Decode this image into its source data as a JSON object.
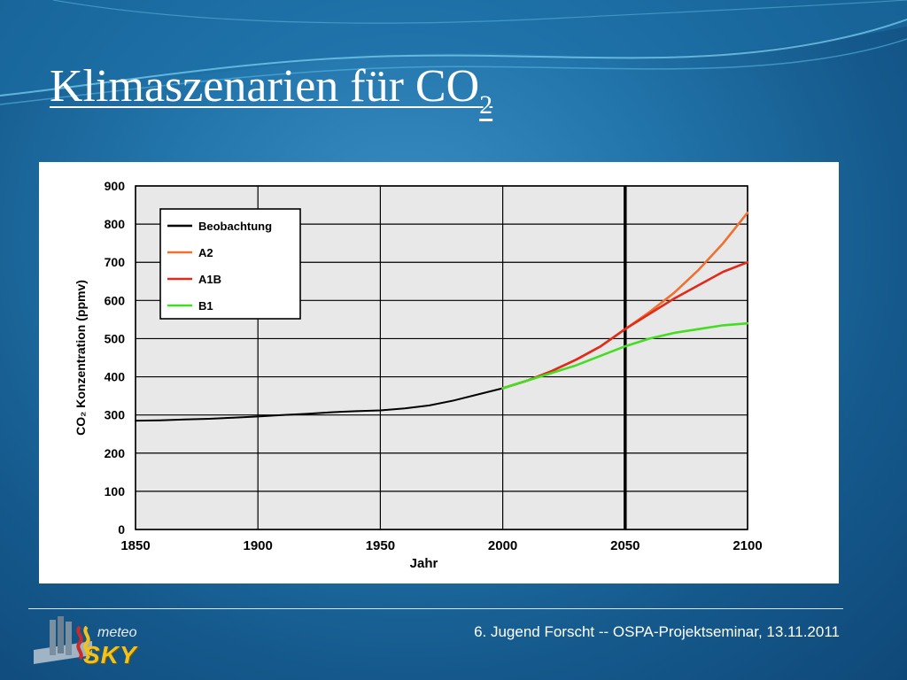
{
  "slide": {
    "title": "Klimaszenarien für CO",
    "title_subscript": "2"
  },
  "footer": {
    "text": "6. Jugend Forscht -- OSPA-Projektseminar, 13.11.2011"
  },
  "logo": {
    "line1": "meteo",
    "line2": "SKY",
    "icon": "meteosky-logo-icon"
  },
  "colors": {
    "background": "#1d6aa0",
    "beobachtung": "#000000",
    "A2": "#f07030",
    "A1B": "#e02b1a",
    "B1": "#44dd22"
  },
  "chart_data": {
    "type": "line",
    "xlabel": "Jahr",
    "ylabel": "CO₂ Konzentration (ppmv)",
    "xlim": [
      1850,
      2100
    ],
    "ylim": [
      0,
      900
    ],
    "x_ticks": [
      1850,
      1900,
      1950,
      2000,
      2050,
      2100
    ],
    "y_ticks": [
      0,
      100,
      200,
      300,
      400,
      500,
      600,
      700,
      800,
      900
    ],
    "grid": true,
    "vertical_marker_x": 2050,
    "legend_position": "top-left",
    "series": [
      {
        "name": "Beobachtung",
        "color": "#000000",
        "x": [
          1850,
          1860,
          1870,
          1880,
          1890,
          1900,
          1910,
          1920,
          1930,
          1940,
          1950,
          1960,
          1970,
          1980,
          1990,
          2000
        ],
        "y": [
          285,
          286,
          288,
          290,
          293,
          296,
          300,
          303,
          307,
          310,
          312,
          317,
          325,
          338,
          354,
          370
        ]
      },
      {
        "name": "A2",
        "color": "#f07030",
        "x": [
          2000,
          2010,
          2020,
          2030,
          2040,
          2050,
          2060,
          2070,
          2080,
          2090,
          2100
        ],
        "y": [
          370,
          390,
          415,
          445,
          480,
          525,
          570,
          620,
          680,
          750,
          830
        ]
      },
      {
        "name": "A1B",
        "color": "#e02b1a",
        "x": [
          2000,
          2010,
          2020,
          2030,
          2040,
          2050,
          2060,
          2070,
          2080,
          2090,
          2100
        ],
        "y": [
          370,
          390,
          415,
          445,
          480,
          525,
          565,
          605,
          640,
          675,
          700
        ]
      },
      {
        "name": "B1",
        "color": "#44dd22",
        "x": [
          2000,
          2010,
          2020,
          2030,
          2040,
          2050,
          2060,
          2070,
          2080,
          2090,
          2100
        ],
        "y": [
          370,
          390,
          410,
          430,
          455,
          480,
          500,
          515,
          525,
          535,
          540
        ]
      }
    ]
  }
}
